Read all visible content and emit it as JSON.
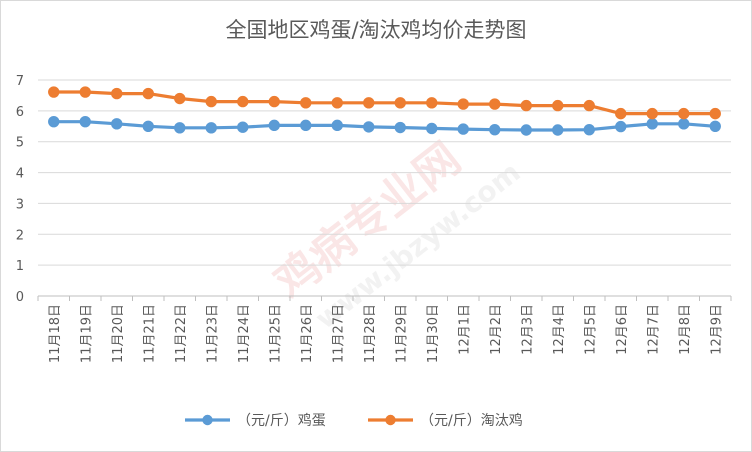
{
  "chart_data": {
    "type": "line",
    "title": "全国地区鸡蛋/淘汰鸡均价走势图",
    "xlabel": "",
    "ylabel": "",
    "ylim": [
      0,
      7
    ],
    "yticks": [
      0,
      1,
      2,
      3,
      4,
      5,
      6,
      7
    ],
    "grid": true,
    "legend_position": "bottom",
    "categories": [
      "11月18日",
      "11月19日",
      "11月20日",
      "11月21日",
      "11月22日",
      "11月23日",
      "11月24日",
      "11月25日",
      "11月26日",
      "11月27日",
      "11月28日",
      "11月29日",
      "11月30日",
      "12月1日",
      "12月2日",
      "12月3日",
      "12月4日",
      "12月5日",
      "12月6日",
      "12月7日",
      "12月8日",
      "12月9日"
    ],
    "series": [
      {
        "name": "（元/斤）鸡蛋",
        "color": "#5b9bd5",
        "values": [
          5.65,
          5.65,
          5.58,
          5.5,
          5.45,
          5.45,
          5.47,
          5.53,
          5.53,
          5.53,
          5.48,
          5.46,
          5.43,
          5.41,
          5.39,
          5.38,
          5.38,
          5.39,
          5.49,
          5.58,
          5.58,
          5.5
        ]
      },
      {
        "name": "（元/斤）淘汰鸡",
        "color": "#ed7d31",
        "values": [
          6.61,
          6.61,
          6.56,
          6.56,
          6.4,
          6.3,
          6.3,
          6.3,
          6.26,
          6.26,
          6.26,
          6.26,
          6.26,
          6.22,
          6.22,
          6.17,
          6.17,
          6.17,
          5.91,
          5.91,
          5.91,
          5.91
        ]
      }
    ],
    "watermark": {
      "chinese": "鸡病专业网",
      "url": "www.jbzyw.com"
    }
  }
}
